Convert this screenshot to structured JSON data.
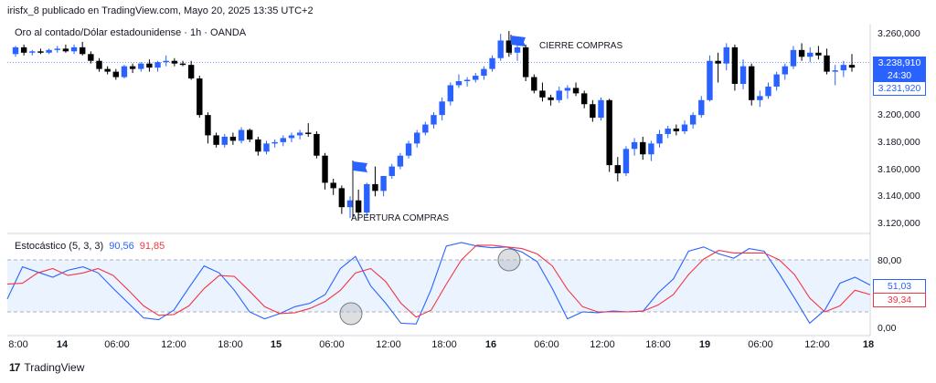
{
  "header": {
    "published": "irisfx_8 publicado en TradingView.com, Mayo 20, 2025 13:35 UTC+2",
    "symbol": "Oro al contado/Dólar estadounidense · 1h · OANDA"
  },
  "price_axis": {
    "labels": [
      "3.260,000",
      "3.240,000",
      "3.220,000",
      "3.200,000",
      "3.180,000",
      "3.160,000",
      "3.140,000",
      "3.120,000"
    ],
    "last_price": "3.238,910",
    "countdown": "24:30",
    "ref_price": "3.231,920"
  },
  "oscillator": {
    "title": "Estocástico (5, 3, 3)",
    "k_value": "90,56",
    "d_value": "91,85",
    "axis_labels": [
      "80,00",
      "0,00"
    ],
    "k_badge": "51,03",
    "d_badge": "39,34"
  },
  "time_axis": {
    "labels": [
      "8:00",
      "14",
      "06:00",
      "12:00",
      "18:00",
      "15",
      "06:00",
      "12:00",
      "18:00",
      "16",
      "06:00",
      "12:00",
      "18:00",
      "19",
      "06:00",
      "12:00",
      "18"
    ]
  },
  "annotations": {
    "buy_open": "APERTURA COMPRAS",
    "buy_close": "CIERRE COMPRAS"
  },
  "footer": {
    "brand": "TradingView",
    "logo_glyph": "17"
  },
  "colors": {
    "up": "#2962ff",
    "down": "#000000",
    "k_line": "#2962ff",
    "d_line": "#f23645",
    "band_fill": "#e3effd"
  },
  "chart_data": [
    {
      "type": "candlestick",
      "title": "Oro al contado/Dólar estadounidense · 1h · OANDA",
      "ylim": [
        3115,
        3268
      ],
      "candles": [
        [
          3245,
          3251,
          3243,
          3250
        ],
        [
          3250,
          3252,
          3244,
          3246
        ],
        [
          3246,
          3248,
          3244,
          3247
        ],
        [
          3247,
          3249,
          3245,
          3246
        ],
        [
          3246,
          3249,
          3245,
          3248
        ],
        [
          3248,
          3251,
          3246,
          3249
        ],
        [
          3249,
          3252,
          3246,
          3247
        ],
        [
          3247,
          3252,
          3245,
          3250
        ],
        [
          3250,
          3254,
          3244,
          3245
        ],
        [
          3245,
          3247,
          3238,
          3240
        ],
        [
          3240,
          3242,
          3232,
          3234
        ],
        [
          3234,
          3236,
          3230,
          3232
        ],
        [
          3232,
          3234,
          3226,
          3228
        ],
        [
          3228,
          3237,
          3227,
          3236
        ],
        [
          3236,
          3238,
          3231,
          3234
        ],
        [
          3234,
          3239,
          3232,
          3238
        ],
        [
          3238,
          3241,
          3232,
          3235
        ],
        [
          3235,
          3240,
          3232,
          3239
        ],
        [
          3239,
          3244,
          3236,
          3240
        ],
        [
          3240,
          3242,
          3236,
          3238
        ],
        [
          3238,
          3240,
          3236,
          3237
        ],
        [
          3237,
          3240,
          3226,
          3227
        ],
        [
          3227,
          3229,
          3198,
          3200
        ],
        [
          3200,
          3202,
          3179,
          3185
        ],
        [
          3185,
          3187,
          3176,
          3178
        ],
        [
          3178,
          3186,
          3176,
          3184
        ],
        [
          3184,
          3187,
          3178,
          3181
        ],
        [
          3181,
          3191,
          3179,
          3189
        ],
        [
          3189,
          3190,
          3180,
          3182
        ],
        [
          3182,
          3184,
          3170,
          3173
        ],
        [
          3173,
          3181,
          3171,
          3179
        ],
        [
          3179,
          3182,
          3176,
          3180
        ],
        [
          3180,
          3185,
          3177,
          3183
        ],
        [
          3183,
          3187,
          3180,
          3185
        ],
        [
          3185,
          3189,
          3182,
          3187
        ],
        [
          3187,
          3194,
          3184,
          3186
        ],
        [
          3186,
          3188,
          3168,
          3170
        ],
        [
          3170,
          3172,
          3145,
          3150
        ],
        [
          3150,
          3153,
          3141,
          3146
        ],
        [
          3146,
          3148,
          3127,
          3132
        ],
        [
          3132,
          3140,
          3124,
          3137
        ],
        [
          3137,
          3145,
          3122,
          3128
        ],
        [
          3128,
          3150,
          3125,
          3149
        ],
        [
          3149,
          3162,
          3140,
          3144
        ],
        [
          3144,
          3155,
          3140,
          3155
        ],
        [
          3155,
          3164,
          3153,
          3162
        ],
        [
          3162,
          3172,
          3160,
          3170
        ],
        [
          3170,
          3181,
          3168,
          3179
        ],
        [
          3179,
          3189,
          3176,
          3187
        ],
        [
          3187,
          3195,
          3185,
          3193
        ],
        [
          3193,
          3202,
          3190,
          3200
        ],
        [
          3200,
          3213,
          3196,
          3210
        ],
        [
          3210,
          3224,
          3207,
          3222
        ],
        [
          3222,
          3230,
          3220,
          3225
        ],
        [
          3225,
          3228,
          3221,
          3226
        ],
        [
          3226,
          3231,
          3224,
          3229
        ],
        [
          3229,
          3236,
          3226,
          3234
        ],
        [
          3234,
          3244,
          3232,
          3242
        ],
        [
          3242,
          3260,
          3240,
          3255
        ],
        [
          3255,
          3262,
          3243,
          3246
        ],
        [
          3246,
          3253,
          3240,
          3250
        ],
        [
          3250,
          3252,
          3225,
          3228
        ],
        [
          3228,
          3230,
          3216,
          3218
        ],
        [
          3218,
          3224,
          3210,
          3213
        ],
        [
          3213,
          3215,
          3207,
          3211
        ],
        [
          3211,
          3221,
          3209,
          3218
        ],
        [
          3218,
          3222,
          3212,
          3220
        ],
        [
          3220,
          3224,
          3214,
          3216
        ],
        [
          3216,
          3218,
          3205,
          3208
        ],
        [
          3208,
          3211,
          3195,
          3198
        ],
        [
          3198,
          3213,
          3196,
          3211
        ],
        [
          3211,
          3212,
          3158,
          3163
        ],
        [
          3163,
          3169,
          3151,
          3157
        ],
        [
          3157,
          3177,
          3155,
          3175
        ],
        [
          3175,
          3183,
          3170,
          3180
        ],
        [
          3180,
          3184,
          3167,
          3171
        ],
        [
          3171,
          3181,
          3166,
          3179
        ],
        [
          3179,
          3189,
          3176,
          3186
        ],
        [
          3186,
          3192,
          3183,
          3190
        ],
        [
          3190,
          3193,
          3185,
          3188
        ],
        [
          3188,
          3196,
          3186,
          3193
        ],
        [
          3193,
          3202,
          3190,
          3200
        ],
        [
          3200,
          3214,
          3198,
          3211
        ],
        [
          3211,
          3244,
          3210,
          3240
        ],
        [
          3240,
          3246,
          3224,
          3238
        ],
        [
          3238,
          3253,
          3233,
          3250
        ],
        [
          3250,
          3252,
          3218,
          3223
        ],
        [
          3223,
          3241,
          3219,
          3236
        ],
        [
          3236,
          3238,
          3207,
          3211
        ],
        [
          3211,
          3218,
          3206,
          3214
        ],
        [
          3214,
          3224,
          3212,
          3221
        ],
        [
          3221,
          3232,
          3218,
          3230
        ],
        [
          3230,
          3238,
          3226,
          3236
        ],
        [
          3236,
          3251,
          3234,
          3248
        ],
        [
          3248,
          3253,
          3240,
          3243
        ],
        [
          3243,
          3250,
          3239,
          3246
        ],
        [
          3246,
          3251,
          3241,
          3244
        ],
        [
          3244,
          3249,
          3230,
          3232
        ],
        [
          3232,
          3237,
          3222,
          3233
        ],
        [
          3233,
          3240,
          3228,
          3237
        ],
        [
          3237,
          3245,
          3232,
          3235
        ]
      ]
    },
    {
      "type": "line",
      "title": "Estocástico (5, 3, 3)",
      "ylim": [
        0,
        100
      ],
      "bands": [
        20,
        80
      ],
      "series": [
        {
          "name": "%K",
          "values": [
            35,
            72,
            66,
            60,
            68,
            72,
            65,
            47,
            30,
            13,
            11,
            22,
            48,
            73,
            65,
            45,
            20,
            12,
            18,
            26,
            30,
            40,
            70,
            84,
            50,
            30,
            7,
            6,
            46,
            96,
            100,
            96,
            94,
            95,
            89,
            78,
            47,
            12,
            20,
            19,
            21,
            20,
            21,
            42,
            58,
            90,
            95,
            87,
            82,
            93,
            90,
            64,
            36,
            7,
            22,
            53,
            60,
            51
          ]
        },
        {
          "name": "%D",
          "values": [
            52,
            53,
            65,
            70,
            62,
            65,
            70,
            62,
            45,
            27,
            16,
            17,
            27,
            47,
            62,
            61,
            44,
            26,
            18,
            19,
            24,
            32,
            45,
            65,
            70,
            55,
            30,
            14,
            22,
            52,
            80,
            97,
            97,
            95,
            93,
            87,
            73,
            46,
            26,
            20,
            20,
            20,
            21,
            28,
            40,
            63,
            81,
            91,
            88,
            88,
            88,
            80,
            63,
            36,
            20,
            27,
            45,
            40
          ]
        }
      ]
    }
  ]
}
